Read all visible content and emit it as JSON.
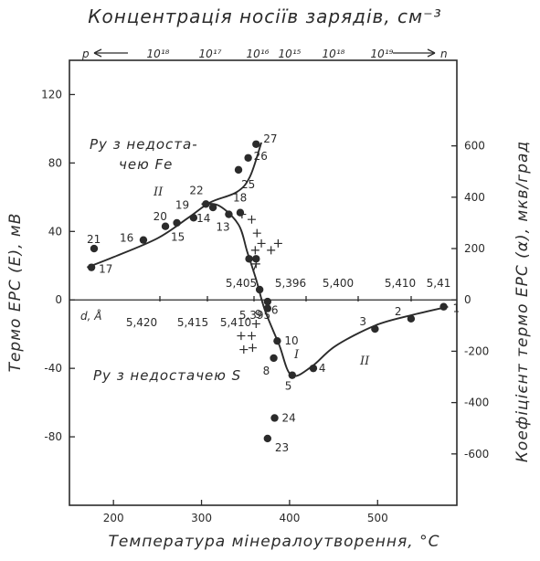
{
  "chart_data": {
    "type": "scatter",
    "title": "Концентрація носіїв зарядів, см⁻³",
    "xlabel": "Температура мінералоутворення, °С",
    "ylabel_left": "Термо ЕРС (Е), мВ",
    "ylabel_right": "Коефіцієнт термо ЕРС (α), мкв/град",
    "xlim": [
      150,
      590
    ],
    "ylim": [
      -120,
      140
    ],
    "x_ticks": [
      "200",
      "300",
      "400",
      "500"
    ],
    "y_ticks_left": [
      "120",
      "80",
      "40",
      "0",
      "-40",
      "-80"
    ],
    "y_ticks_right": [
      "600",
      "400",
      "200",
      "0",
      "-200",
      "-400",
      "-600"
    ],
    "top_axis": {
      "p_label": "p",
      "n_label": "n",
      "left_ticks": [
        "10¹⁸",
        "10¹⁷",
        "10¹⁶"
      ],
      "right_ticks": [
        "10¹⁵",
        "10¹⁸",
        "10¹⁹"
      ]
    },
    "lattice_axis": {
      "label": "d, Å",
      "left_ticks": [
        "5,420",
        "5,415",
        "5,410",
        "5,405"
      ],
      "right_ticks": [
        "5,396",
        "5,400",
        "5,410",
        "5,41"
      ],
      "mid_tick": "5,395"
    },
    "annotations": {
      "fe_line1": "Py з недоста-",
      "fe_line2": "чею Fe",
      "s_text": "Py з недостачею S",
      "roman_upper_ii": "II",
      "roman_i": "I",
      "roman_lower_ii": "II"
    },
    "series": [
      {
        "points": [
          {
            "label": "17",
            "x": 175,
            "y": 19
          },
          {
            "label": "21",
            "x": 178,
            "y": 30
          },
          {
            "label": "16",
            "x": 234,
            "y": 35
          },
          {
            "label": "15",
            "x": 259,
            "y": 43
          },
          {
            "label": "20",
            "x": 272,
            "y": 45
          },
          {
            "label": "19",
            "x": 291,
            "y": 48
          },
          {
            "label": "22",
            "x": 305,
            "y": 56
          },
          {
            "label": "14",
            "x": 313,
            "y": 54
          },
          {
            "label": "13",
            "x": 331,
            "y": 50
          },
          {
            "label": "18",
            "x": 344,
            "y": 51
          },
          {
            "label": "25",
            "x": 342,
            "y": 76
          },
          {
            "label": "26",
            "x": 353,
            "y": 83
          },
          {
            "label": "27",
            "x": 362,
            "y": 91
          },
          {
            "label": "",
            "x": 354,
            "y": 24
          },
          {
            "label": "7",
            "x": 362,
            "y": 24
          },
          {
            "label": "",
            "x": 366,
            "y": 6
          }
        ]
      },
      {
        "points": [
          {
            "label": "1",
            "x": 575,
            "y": -4
          },
          {
            "label": "2",
            "x": 538,
            "y": -11
          },
          {
            "label": "3",
            "x": 497,
            "y": -17
          },
          {
            "label": "4",
            "x": 427,
            "y": -40
          },
          {
            "label": "5",
            "x": 403,
            "y": -44
          },
          {
            "label": "10",
            "x": 386,
            "y": -24
          },
          {
            "label": "8",
            "x": 382,
            "y": -34
          },
          {
            "label": "6",
            "x": 375,
            "y": -5
          },
          {
            "label": "9",
            "x": 375,
            "y": -1
          },
          {
            "label": "24",
            "x": 383,
            "y": -69
          },
          {
            "label": "23",
            "x": 375,
            "y": -81
          }
        ]
      }
    ],
    "curves": [
      [
        [
          170,
          19
        ],
        [
          200,
          25
        ],
        [
          250,
          36
        ],
        [
          285,
          48
        ],
        [
          310,
          57
        ],
        [
          340,
          63
        ],
        [
          355,
          72
        ],
        [
          368,
          92
        ]
      ],
      [
        [
          300,
          56
        ],
        [
          320,
          55
        ],
        [
          342,
          44
        ],
        [
          352,
          28
        ],
        [
          362,
          12
        ],
        [
          372,
          -6
        ],
        [
          388,
          -26
        ],
        [
          402,
          -44
        ],
        [
          425,
          -39
        ],
        [
          452,
          -27
        ],
        [
          497,
          -15
        ],
        [
          538,
          -9
        ],
        [
          580,
          -4
        ]
      ]
    ],
    "crosses": [
      [
        346,
        50
      ],
      [
        357,
        47
      ],
      [
        363,
        39
      ],
      [
        361,
        29
      ],
      [
        362,
        21
      ],
      [
        368,
        33
      ],
      [
        379,
        29
      ],
      [
        387,
        33
      ],
      [
        345,
        -21
      ],
      [
        362,
        -14
      ],
      [
        357,
        -21
      ],
      [
        348,
        -29
      ],
      [
        358,
        -28
      ]
    ]
  }
}
